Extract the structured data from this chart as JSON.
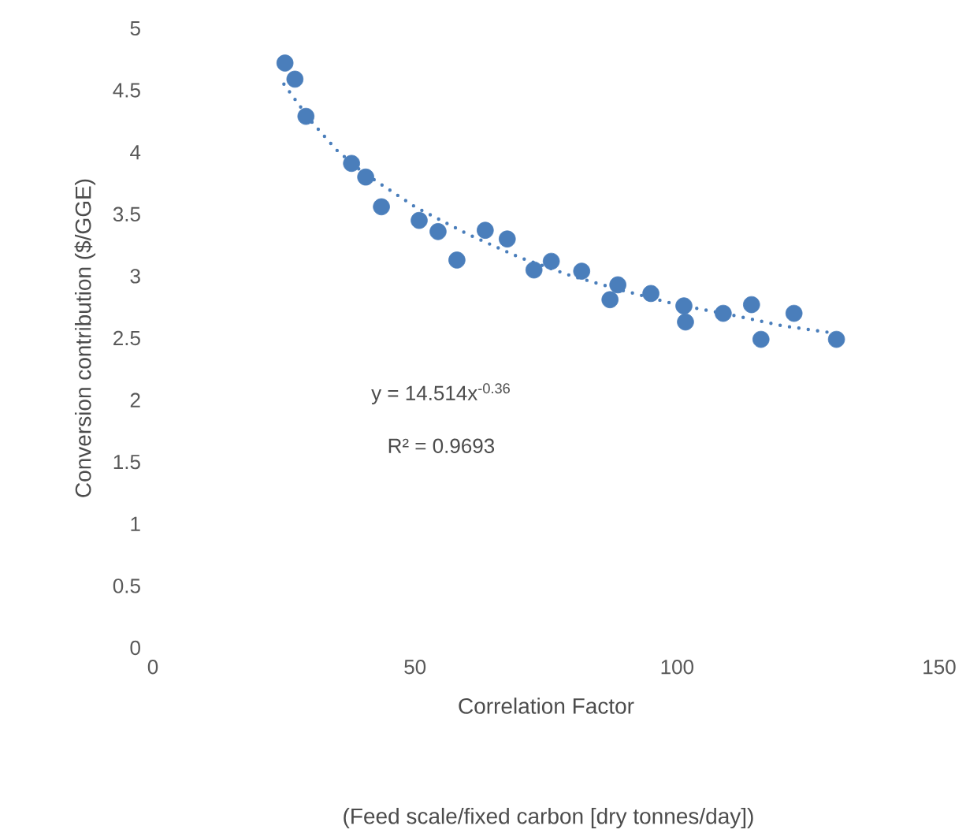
{
  "chart_data": {
    "type": "scatter",
    "xlabel": "Correlation Factor",
    "ylabel": "Conversion contribution ($/GGE)",
    "annotations": [
      "y = 14.514x$^{-0.36}$",
      "R² = 0.9693",
      "(Feed scale/fixed carbon [dry tonnes/day])"
    ],
    "xlim": [
      0,
      150
    ],
    "xticks": [
      0,
      50,
      100,
      150
    ],
    "ylim": [
      0,
      5
    ],
    "yticks": [
      0,
      0.5,
      1,
      1.5,
      2,
      2.5,
      3,
      3.5,
      4,
      4.5,
      5
    ],
    "series": [
      {
        "marker": "circle",
        "color": "#4a7ebb",
        "x": [
          25.2,
          27.1,
          29.2,
          37.9,
          40.6,
          43.6,
          50.8,
          54.4,
          58.0,
          63.4,
          67.6,
          72.7,
          76.0,
          81.8,
          87.2,
          88.7,
          95.0,
          101.3,
          101.6,
          108.8,
          114.2,
          116.0,
          122.3,
          130.4
        ],
        "values": [
          4.72,
          4.59,
          4.29,
          3.91,
          3.8,
          3.56,
          3.45,
          3.36,
          3.13,
          3.37,
          3.3,
          3.05,
          3.12,
          3.04,
          2.81,
          2.93,
          2.86,
          2.76,
          2.63,
          2.7,
          2.77,
          2.49,
          2.7,
          2.49
        ]
      },
      {
        "type": "line",
        "color": "#4a7ebb",
        "line_style": "dotted",
        "marker": "none",
        "x": [
          25,
          30,
          35,
          40,
          50,
          60,
          70,
          80,
          90,
          100,
          110,
          120,
          130
        ],
        "values": [
          4.55,
          4.26,
          4.02,
          3.84,
          3.56,
          3.34,
          3.15,
          3.0,
          2.88,
          2.77,
          2.69,
          2.6,
          2.54
        ]
      }
    ]
  }
}
